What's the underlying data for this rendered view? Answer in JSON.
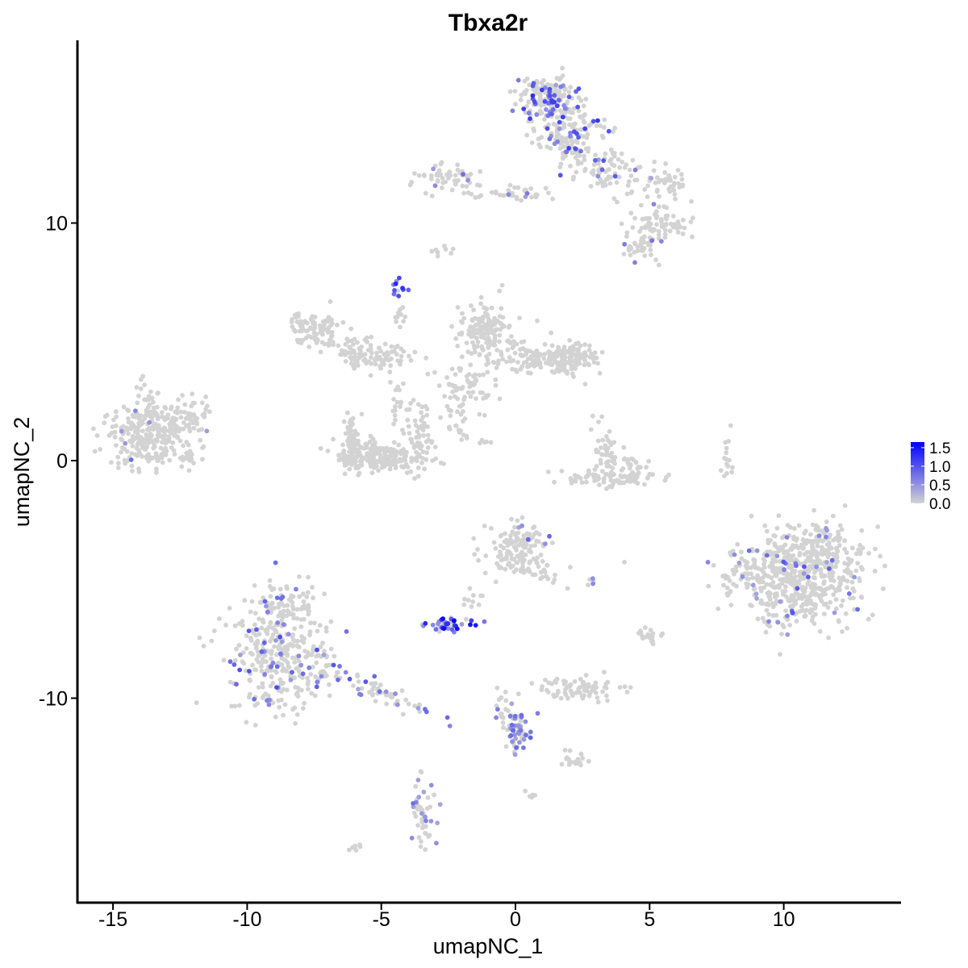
{
  "chart_data": {
    "type": "scatter",
    "title": "Tbxa2r",
    "xlabel": "umapNC_1",
    "ylabel": "umapNC_2",
    "xlim": [
      -16.5,
      14.5
    ],
    "ylim": [
      -18.5,
      17.7
    ],
    "x_ticks": [
      -15,
      -10,
      -5,
      0,
      5,
      10
    ],
    "x_tick_labels": [
      "-15",
      "-10",
      "-5",
      "0",
      "5",
      "10"
    ],
    "y_ticks": [
      -10,
      0,
      10
    ],
    "y_tick_labels": [
      "-10",
      "0",
      "10"
    ],
    "grid": false,
    "legend_position": "right",
    "colors": {
      "low": "#d3d3d3",
      "high": "#0000ff"
    },
    "color_scale": {
      "min": 0,
      "max": 1.65,
      "ticks": [
        0.0,
        0.5,
        1.0,
        1.5
      ],
      "tick_labels": [
        "0.0",
        "0.5",
        "1.0",
        "1.5"
      ]
    },
    "clusters": [
      {
        "cx": -13.6,
        "cy": 1.2,
        "sx": 0.85,
        "sy": 0.75,
        "n": 300,
        "rot": 0.25,
        "expr_frac": 0.01,
        "expr_max": 0.8
      },
      {
        "cx": -12.2,
        "cy": 1.9,
        "sx": 0.45,
        "sy": 0.3,
        "n": 40,
        "rot": 0.6,
        "expr_frac": 0.0,
        "expr_max": 0.5
      },
      {
        "cx": -12.3,
        "cy": 0.2,
        "sx": 0.35,
        "sy": 0.2,
        "n": 25,
        "rot": 0.0,
        "expr_frac": 0.0,
        "expr_max": 0.5
      },
      {
        "cx": -7.5,
        "cy": 5.5,
        "sx": 0.45,
        "sy": 0.35,
        "n": 90,
        "rot": 0.0,
        "expr_frac": 0.0,
        "expr_max": 0.5
      },
      {
        "cx": -6.0,
        "cy": 4.6,
        "sx": 0.55,
        "sy": 0.35,
        "n": 60,
        "rot": -0.35,
        "expr_frac": 0.0,
        "expr_max": 0.5
      },
      {
        "cx": -4.9,
        "cy": 4.3,
        "sx": 0.5,
        "sy": 0.3,
        "n": 45,
        "rot": 0.0,
        "expr_frac": 0.0,
        "expr_max": 0.5
      },
      {
        "cx": -5.0,
        "cy": 0.15,
        "sx": 0.85,
        "sy": 0.35,
        "n": 230,
        "rot": 0.0,
        "expr_frac": 0.0,
        "expr_max": 0.5
      },
      {
        "cx": -6.1,
        "cy": 1.0,
        "sx": 0.15,
        "sy": 0.55,
        "n": 45,
        "rot": 0.0,
        "expr_frac": 0.0,
        "expr_max": 0.5
      },
      {
        "cx": -3.6,
        "cy": 1.2,
        "sx": 0.2,
        "sy": 0.7,
        "n": 50,
        "rot": 0.0,
        "expr_frac": 0.0,
        "expr_max": 0.5
      },
      {
        "cx": -4.4,
        "cy": 2.4,
        "sx": 0.15,
        "sy": 0.7,
        "n": 18,
        "rot": 0.0,
        "expr_frac": 0.0,
        "expr_max": 0.5
      },
      {
        "cx": -4.4,
        "cy": 7.2,
        "sx": 0.15,
        "sy": 0.2,
        "n": 12,
        "rot": 0.0,
        "expr_frac": 0.9,
        "expr_max": 1.6
      },
      {
        "cx": -4.3,
        "cy": 6.0,
        "sx": 0.1,
        "sy": 0.5,
        "n": 10,
        "rot": 0.0,
        "expr_frac": 0.0,
        "expr_max": 0.5
      },
      {
        "cx": -1.1,
        "cy": 5.4,
        "sx": 0.5,
        "sy": 0.6,
        "n": 150,
        "rot": 0.0,
        "expr_frac": 0.0,
        "expr_max": 0.5
      },
      {
        "cx": 1.0,
        "cy": 4.3,
        "sx": 0.9,
        "sy": 0.3,
        "n": 130,
        "rot": 0.0,
        "expr_frac": 0.0,
        "expr_max": 0.5
      },
      {
        "cx": 2.1,
        "cy": 4.3,
        "sx": 0.45,
        "sy": 0.35,
        "n": 90,
        "rot": 0.0,
        "expr_frac": 0.0,
        "expr_max": 0.5
      },
      {
        "cx": -1.8,
        "cy": 3.2,
        "sx": 0.5,
        "sy": 0.5,
        "n": 60,
        "rot": 0.0,
        "expr_frac": 0.0,
        "expr_max": 0.5
      },
      {
        "cx": -2.1,
        "cy": 2.0,
        "sx": 0.15,
        "sy": 0.6,
        "n": 15,
        "rot": 0.0,
        "expr_frac": 0.0,
        "expr_max": 0.5
      },
      {
        "cx": -1.9,
        "cy": 1.1,
        "sx": 0.6,
        "sy": 0.12,
        "n": 14,
        "rot": -0.5,
        "expr_frac": 0.0,
        "expr_max": 0.5
      },
      {
        "cx": 1.3,
        "cy": 15.3,
        "sx": 0.55,
        "sy": 0.45,
        "n": 160,
        "rot": 0.0,
        "expr_frac": 0.2,
        "expr_max": 1.2
      },
      {
        "cx": 1.9,
        "cy": 14.0,
        "sx": 0.7,
        "sy": 0.6,
        "n": 130,
        "rot": 0.0,
        "expr_frac": 0.2,
        "expr_max": 1.3
      },
      {
        "cx": 3.3,
        "cy": 12.2,
        "sx": 0.9,
        "sy": 0.4,
        "n": 100,
        "rot": -0.5,
        "expr_frac": 0.05,
        "expr_max": 1.0
      },
      {
        "cx": 5.5,
        "cy": 11.6,
        "sx": 0.45,
        "sy": 0.35,
        "n": 40,
        "rot": 0.0,
        "expr_frac": 0.05,
        "expr_max": 0.8
      },
      {
        "cx": 5.4,
        "cy": 9.9,
        "sx": 0.6,
        "sy": 0.35,
        "n": 70,
        "rot": 0.0,
        "expr_frac": 0.02,
        "expr_max": 0.8
      },
      {
        "cx": 4.6,
        "cy": 9.0,
        "sx": 0.35,
        "sy": 0.3,
        "n": 40,
        "rot": 0.0,
        "expr_frac": 0.02,
        "expr_max": 0.8
      },
      {
        "cx": -2.4,
        "cy": 11.9,
        "sx": 0.55,
        "sy": 0.25,
        "n": 55,
        "rot": 0.0,
        "expr_frac": 0.03,
        "expr_max": 0.8
      },
      {
        "cx": -0.3,
        "cy": 11.2,
        "sx": 1.0,
        "sy": 0.15,
        "n": 40,
        "rot": 0.0,
        "expr_frac": 0.1,
        "expr_max": 0.9
      },
      {
        "cx": 3.3,
        "cy": 0.5,
        "sx": 0.2,
        "sy": 0.6,
        "n": 40,
        "rot": 0.0,
        "expr_frac": 0.0,
        "expr_max": 0.5
      },
      {
        "cx": 3.4,
        "cy": -0.7,
        "sx": 0.9,
        "sy": 0.2,
        "n": 80,
        "rot": 0.0,
        "expr_frac": 0.0,
        "expr_max": 0.5
      },
      {
        "cx": 4.3,
        "cy": -0.2,
        "sx": 0.3,
        "sy": 0.35,
        "n": 25,
        "rot": 0.0,
        "expr_frac": 0.0,
        "expr_max": 0.5
      },
      {
        "cx": 7.9,
        "cy": 0.3,
        "sx": 0.12,
        "sy": 0.6,
        "n": 15,
        "rot": 0.0,
        "expr_frac": 0.0,
        "expr_max": 0.5
      },
      {
        "cx": 10.3,
        "cy": -5.0,
        "sx": 1.3,
        "sy": 0.95,
        "n": 520,
        "rot": 0.0,
        "expr_frac": 0.07,
        "expr_max": 1.0
      },
      {
        "cx": 11.5,
        "cy": -3.6,
        "sx": 0.8,
        "sy": 0.6,
        "n": 130,
        "rot": 0.0,
        "expr_frac": 0.03,
        "expr_max": 0.9
      },
      {
        "cx": 0.2,
        "cy": -3.3,
        "sx": 0.65,
        "sy": 0.35,
        "n": 80,
        "rot": 0.0,
        "expr_frac": 0.05,
        "expr_max": 0.9
      },
      {
        "cx": -0.2,
        "cy": -4.2,
        "sx": 0.5,
        "sy": 0.3,
        "n": 50,
        "rot": 0.0,
        "expr_frac": 0.02,
        "expr_max": 0.8
      },
      {
        "cx": 1.0,
        "cy": -4.6,
        "sx": 0.5,
        "sy": 0.25,
        "n": 30,
        "rot": -0.6,
        "expr_frac": 0.0,
        "expr_max": 0.5
      },
      {
        "cx": -2.5,
        "cy": -6.9,
        "sx": 0.35,
        "sy": 0.15,
        "n": 45,
        "rot": 0.0,
        "expr_frac": 0.75,
        "expr_max": 1.65
      },
      {
        "cx": -1.6,
        "cy": -6.0,
        "sx": 0.3,
        "sy": 0.3,
        "n": 10,
        "rot": 0.0,
        "expr_frac": 0.0,
        "expr_max": 0.5
      },
      {
        "cx": -8.8,
        "cy": -8.3,
        "sx": 1.0,
        "sy": 1.1,
        "n": 330,
        "rot": 0.0,
        "expr_frac": 0.15,
        "expr_max": 1.1
      },
      {
        "cx": -8.6,
        "cy": -6.0,
        "sx": 0.6,
        "sy": 0.45,
        "n": 70,
        "rot": 0.0,
        "expr_frac": 0.06,
        "expr_max": 0.9
      },
      {
        "cx": -5.4,
        "cy": -9.6,
        "sx": 1.3,
        "sy": 0.22,
        "n": 70,
        "rot": -0.45,
        "expr_frac": 0.25,
        "expr_max": 1.0
      },
      {
        "cx": 2.4,
        "cy": -9.6,
        "sx": 0.8,
        "sy": 0.25,
        "n": 80,
        "rot": 0.0,
        "expr_frac": 0.0,
        "expr_max": 0.5
      },
      {
        "cx": 5.0,
        "cy": -7.4,
        "sx": 0.25,
        "sy": 0.15,
        "n": 20,
        "rot": 0.0,
        "expr_frac": 0.0,
        "expr_max": 0.5
      },
      {
        "cx": 0.0,
        "cy": -11.3,
        "sx": 0.25,
        "sy": 0.55,
        "n": 60,
        "rot": 0.0,
        "expr_frac": 0.55,
        "expr_max": 0.9
      },
      {
        "cx": -0.5,
        "cy": -10.2,
        "sx": 0.12,
        "sy": 0.6,
        "n": 15,
        "rot": 0.0,
        "expr_frac": 0.3,
        "expr_max": 0.8
      },
      {
        "cx": 2.3,
        "cy": -12.6,
        "sx": 0.25,
        "sy": 0.18,
        "n": 20,
        "rot": 0.0,
        "expr_frac": 0.0,
        "expr_max": 0.5
      },
      {
        "cx": -3.4,
        "cy": -14.9,
        "sx": 0.2,
        "sy": 0.7,
        "n": 50,
        "rot": 0.0,
        "expr_frac": 0.35,
        "expr_max": 0.8
      },
      {
        "cx": 2.8,
        "cy": -5.1,
        "sx": 0.1,
        "sy": 0.06,
        "n": 6,
        "rot": 0.0,
        "expr_frac": 0.4,
        "expr_max": 0.6
      },
      {
        "cx": 0.6,
        "cy": -14.1,
        "sx": 0.1,
        "sy": 0.06,
        "n": 5,
        "rot": 0.0,
        "expr_frac": 0.2,
        "expr_max": 0.5
      },
      {
        "cx": -6.0,
        "cy": -16.3,
        "sx": 0.15,
        "sy": 0.08,
        "n": 6,
        "rot": 0.0,
        "expr_frac": 0.0,
        "expr_max": 0.5
      },
      {
        "cx": -2.7,
        "cy": 8.8,
        "sx": 0.2,
        "sy": 0.1,
        "n": 8,
        "rot": 0.0,
        "expr_frac": 0.0,
        "expr_max": 0.5
      }
    ]
  }
}
